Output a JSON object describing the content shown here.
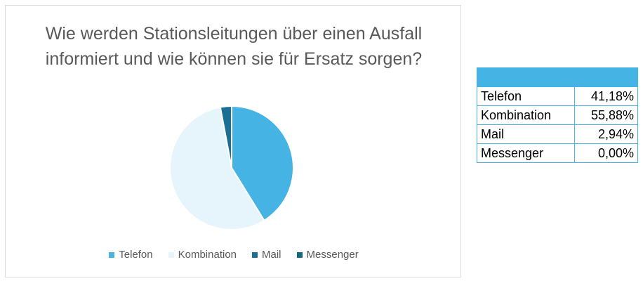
{
  "chart_data": {
    "type": "pie",
    "title": "Wie werden Stationsleitungen über einen Ausfall informiert und wie können sie für Ersatz sorgen?",
    "categories": [
      "Telefon",
      "Kombination",
      "Mail",
      "Messenger"
    ],
    "values": [
      41.18,
      55.88,
      2.94,
      0.0
    ],
    "colors": [
      "#45b3e3",
      "#e6f4fc",
      "#1c6f94",
      "#15697e"
    ],
    "legend_position": "bottom"
  },
  "table": {
    "header": "",
    "rows": [
      {
        "label": "Telefon",
        "value": "41,18%"
      },
      {
        "label": "Kombination",
        "value": "55,88%"
      },
      {
        "label": "Mail",
        "value": "2,94%"
      },
      {
        "label": "Messenger",
        "value": "0,00%"
      }
    ]
  }
}
